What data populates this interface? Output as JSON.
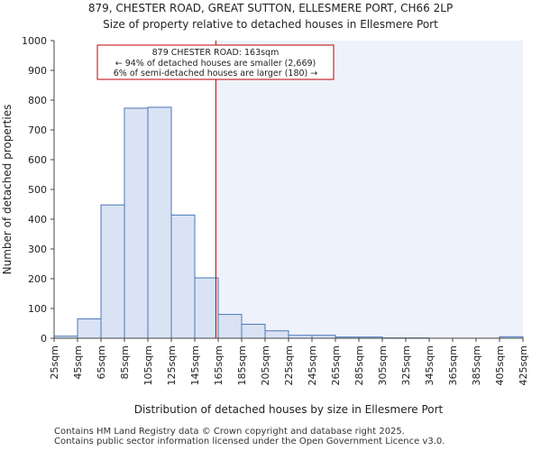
{
  "chart_data": {
    "type": "bar",
    "title": "879, CHESTER ROAD, GREAT SUTTON, ELLESMERE PORT, CH66 2LP",
    "subtitle": "Size of property relative to detached houses in Ellesmere Port",
    "xlabel": "Distribution of detached houses by size in Ellesmere Port",
    "ylabel": "Number of detached properties",
    "ylim": [
      0,
      1000
    ],
    "yticks": [
      0,
      100,
      200,
      300,
      400,
      500,
      600,
      700,
      800,
      900,
      1000
    ],
    "bin_edges": [
      25,
      45,
      65,
      85,
      105,
      125,
      145,
      165,
      185,
      205,
      225,
      245,
      265,
      285,
      305,
      325,
      345,
      365,
      385,
      405,
      425
    ],
    "x_tick_labels": [
      "25sqm",
      "45sqm",
      "65sqm",
      "85sqm",
      "105sqm",
      "125sqm",
      "145sqm",
      "165sqm",
      "185sqm",
      "205sqm",
      "225sqm",
      "245sqm",
      "265sqm",
      "285sqm",
      "305sqm",
      "325sqm",
      "345sqm",
      "365sqm",
      "385sqm",
      "405sqm",
      "425sqm"
    ],
    "values": [
      7,
      65,
      448,
      773,
      776,
      414,
      203,
      80,
      47,
      25,
      10,
      10,
      4,
      4,
      1,
      1,
      0,
      0,
      0,
      5
    ],
    "marker_value": 163,
    "colors": {
      "bar_fill": "#dae3f3",
      "bar_stroke": "#4a78b8",
      "marker_line": "#c00000",
      "highlight_bg": "#eef2fa",
      "axis": "#444444",
      "annotation_border": "#c00000"
    },
    "annotation": {
      "line1": "879 CHESTER ROAD: 163sqm",
      "line2": "← 94% of detached houses are smaller (2,669)",
      "line3": "6% of semi-detached houses are larger (180) →"
    }
  },
  "footer": {
    "line1": "Contains HM Land Registry data © Crown copyright and database right 2025.",
    "line2": "Contains public sector information licensed under the Open Government Licence v3.0."
  }
}
